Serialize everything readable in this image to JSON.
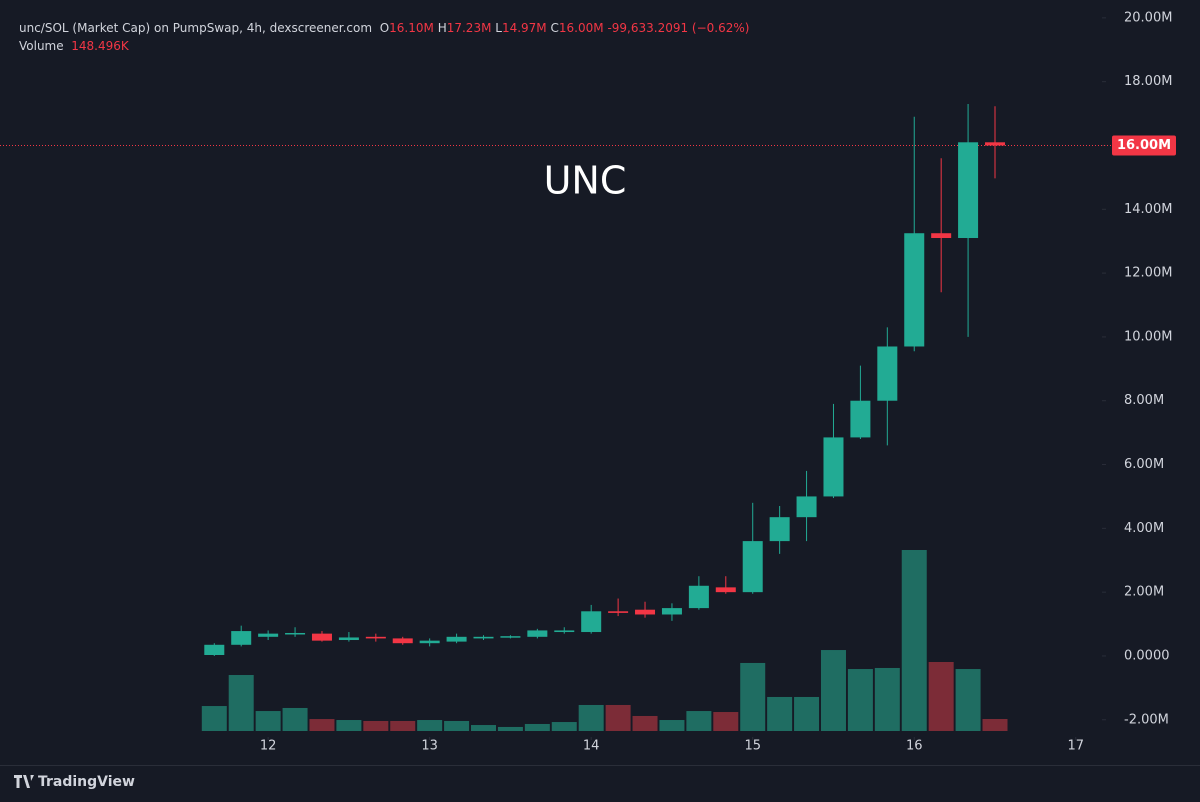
{
  "header": {
    "symbol": "unc/SOL (Market Cap) on PumpSwap, 4h, dexscreener.com",
    "ohlc": [
      {
        "key": "O",
        "value": "16.10M"
      },
      {
        "key": "H",
        "value": "17.23M"
      },
      {
        "key": "L",
        "value": "14.97M"
      },
      {
        "key": "C",
        "value": "16.00M"
      }
    ],
    "change": "-99,633.2091 (−0.62%)",
    "volume_title": "Volume",
    "volume_value": "148.496K"
  },
  "chart_data": {
    "type": "candlestick",
    "annotation": "UNC",
    "x": [
      11.6667,
      11.8333,
      12.0,
      12.1667,
      12.3333,
      12.5,
      12.6667,
      12.8333,
      13.0,
      13.1667,
      13.3333,
      13.5,
      13.6667,
      13.8333,
      14.0,
      14.1667,
      14.3333,
      14.5,
      14.6667,
      14.8333,
      15.0,
      15.1667,
      15.3333,
      15.5,
      15.6667,
      15.8333,
      16.0,
      16.1667,
      16.3333,
      16.5
    ],
    "open": [
      0.03,
      0.35,
      0.6,
      0.7,
      0.7,
      0.5,
      0.6,
      0.55,
      0.4,
      0.45,
      0.55,
      0.58,
      0.6,
      0.75,
      0.75,
      1.4,
      1.45,
      1.3,
      1.5,
      2.15,
      2.0,
      3.6,
      4.35,
      5.0,
      6.85,
      8.0,
      9.7,
      13.25,
      13.1,
      16.1
    ],
    "high": [
      0.4,
      0.95,
      0.8,
      0.9,
      0.78,
      0.75,
      0.7,
      0.6,
      0.55,
      0.7,
      0.65,
      0.65,
      0.85,
      0.9,
      1.6,
      1.8,
      1.7,
      1.65,
      2.5,
      2.5,
      4.8,
      4.7,
      5.8,
      7.9,
      9.1,
      10.3,
      16.9,
      15.6,
      17.3,
      17.23
    ],
    "low": [
      0.0,
      0.3,
      0.5,
      0.6,
      0.45,
      0.45,
      0.45,
      0.35,
      0.3,
      0.4,
      0.5,
      0.55,
      0.55,
      0.7,
      0.7,
      1.25,
      1.2,
      1.1,
      1.45,
      1.95,
      1.95,
      3.2,
      3.6,
      4.95,
      6.8,
      6.6,
      9.55,
      11.4,
      10.0,
      14.97
    ],
    "close": [
      0.35,
      0.78,
      0.7,
      0.72,
      0.48,
      0.58,
      0.55,
      0.4,
      0.48,
      0.6,
      0.6,
      0.62,
      0.8,
      0.8,
      1.4,
      1.35,
      1.3,
      1.5,
      2.2,
      2.0,
      3.6,
      4.35,
      5.0,
      6.85,
      8.0,
      9.7,
      13.25,
      13.1,
      16.1,
      16.0
    ],
    "volume": [
      309000,
      693000,
      247000,
      285000,
      148000,
      136000,
      124000,
      124000,
      136000,
      124000,
      74000,
      50000,
      87000,
      111000,
      322000,
      322000,
      186000,
      136000,
      247000,
      235000,
      842000,
      421000,
      421000,
      1002000,
      767000,
      780000,
      2240000,
      854000,
      767000,
      148496
    ],
    "up_color": "#22ab94",
    "down_color": "#f23645",
    "volume_up_color": "#1f6d62",
    "volume_down_color": "#7c2c37",
    "last_price": {
      "value": 16.0,
      "label": "16.00M"
    },
    "xlim": [
      10.34,
      17.15
    ],
    "xticks": [
      12,
      13,
      14,
      15,
      16,
      17
    ],
    "ylim": [
      -2.54,
      20.56
    ],
    "yticks": [
      {
        "value": -2,
        "label": "-2.00M"
      },
      {
        "value": 0,
        "label": "0.0000"
      },
      {
        "value": 2,
        "label": "2.00M"
      },
      {
        "value": 4,
        "label": "4.00M"
      },
      {
        "value": 6,
        "label": "6.00M"
      },
      {
        "value": 8,
        "label": "8.00M"
      },
      {
        "value": 10,
        "label": "10.00M"
      },
      {
        "value": 12,
        "label": "12.00M"
      },
      {
        "value": 14,
        "label": "14.00M"
      },
      {
        "value": 16,
        "label": "16.00M"
      },
      {
        "value": 18,
        "label": "18.00M"
      },
      {
        "value": 20,
        "label": "20.00M"
      }
    ]
  },
  "footer": {
    "brand": "TradingView"
  }
}
